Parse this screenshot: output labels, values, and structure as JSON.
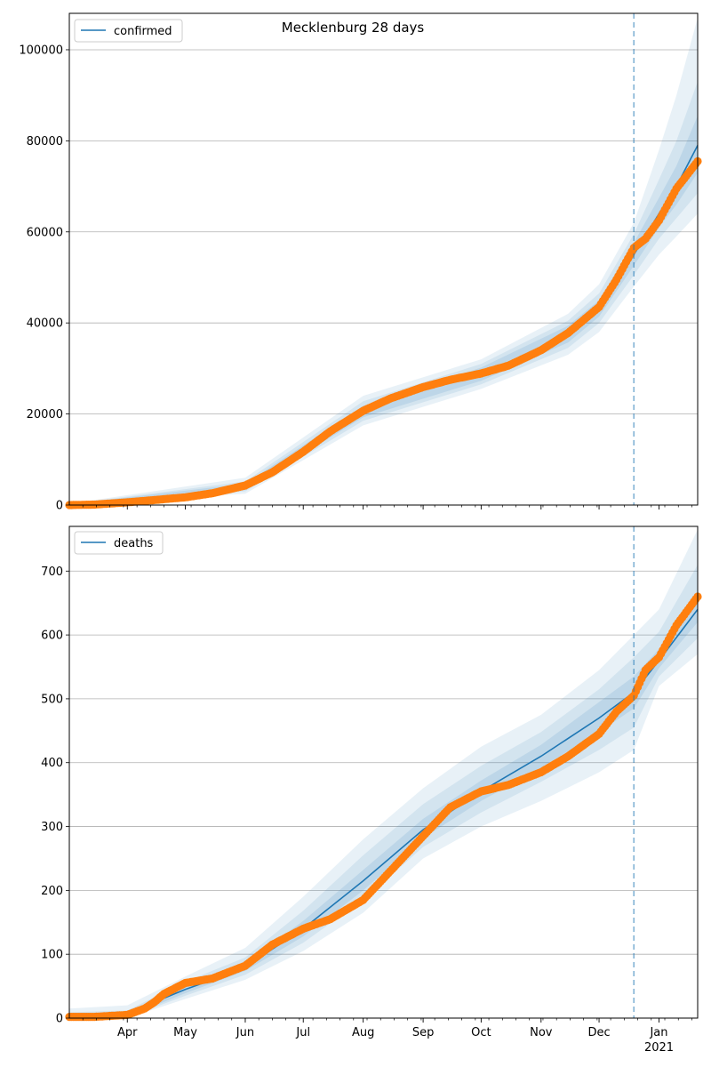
{
  "chart_data": [
    {
      "type": "line",
      "title": "Mecklenburg 28 days",
      "legend": {
        "label": "confirmed",
        "placement": "top-left"
      },
      "ylim": [
        0,
        108000
      ],
      "yticks": [
        0,
        20000,
        40000,
        60000,
        80000,
        100000
      ],
      "ytick_labels": [
        "0",
        "20000",
        "40000",
        "60000",
        "80000",
        "100000"
      ],
      "forecast_start": "2020-12-19",
      "x_range": [
        "2020-03-02",
        "2021-01-21"
      ],
      "grid": "horizontal",
      "colors": {
        "model": "#1f77b4",
        "observed": "#ff7f0e",
        "band": "#1f77b4"
      },
      "model_line": {
        "x": [
          "2020-03-02",
          "2020-04-01",
          "2020-05-01",
          "2020-06-01",
          "2020-06-15",
          "2020-07-01",
          "2020-07-15",
          "2020-08-01",
          "2020-08-15",
          "2020-09-01",
          "2020-09-15",
          "2020-10-01",
          "2020-10-15",
          "2020-11-01",
          "2020-11-15",
          "2020-12-01",
          "2020-12-10",
          "2020-12-19",
          "2021-01-01",
          "2021-01-10",
          "2021-01-21"
        ],
        "y": [
          100,
          500,
          1600,
          4000,
          7000,
          11500,
          16000,
          20500,
          23300,
          25800,
          27300,
          28800,
          30500,
          34000,
          37500,
          43000,
          48500,
          55000,
          64000,
          70000,
          79000
        ]
      },
      "bands": [
        {
          "x": [
            "2020-03-02",
            "2020-06-01",
            "2020-08-01",
            "2020-10-01",
            "2020-11-15",
            "2020-12-01",
            "2020-12-19",
            "2021-01-01",
            "2021-01-10",
            "2021-01-21"
          ],
          "lower": [
            0,
            2500,
            17500,
            25500,
            33000,
            38000,
            48000,
            55000,
            59000,
            64000
          ],
          "upper": [
            300,
            6000,
            24000,
            32000,
            42000,
            48500,
            62000,
            78000,
            90000,
            107000
          ]
        },
        {
          "x": [
            "2020-03-02",
            "2020-06-01",
            "2020-08-01",
            "2020-10-01",
            "2020-11-15",
            "2020-12-01",
            "2020-12-19",
            "2021-01-01",
            "2021-01-10",
            "2021-01-21"
          ],
          "lower": [
            0,
            3000,
            18500,
            26500,
            34500,
            40000,
            50500,
            58500,
            63000,
            68500
          ],
          "upper": [
            200,
            5200,
            22800,
            31000,
            40500,
            46500,
            59500,
            71500,
            80000,
            93000
          ]
        },
        {
          "x": [
            "2020-03-02",
            "2020-06-01",
            "2020-08-01",
            "2020-10-01",
            "2020-11-15",
            "2020-12-01",
            "2020-12-19",
            "2021-01-01",
            "2021-01-10",
            "2021-01-21"
          ],
          "lower": [
            0,
            3400,
            19300,
            27300,
            35700,
            41400,
            52600,
            61000,
            66000,
            73000
          ],
          "upper": [
            150,
            4700,
            21800,
            30200,
            39400,
            45000,
            57600,
            67500,
            74500,
            85500
          ]
        }
      ],
      "observed": {
        "x": [
          "2020-03-02",
          "2020-03-15",
          "2020-04-01",
          "2020-04-15",
          "2020-05-01",
          "2020-05-15",
          "2020-06-01",
          "2020-06-15",
          "2020-07-01",
          "2020-07-15",
          "2020-08-01",
          "2020-08-15",
          "2020-09-01",
          "2020-09-15",
          "2020-10-01",
          "2020-10-15",
          "2020-11-01",
          "2020-11-15",
          "2020-12-01",
          "2020-12-10",
          "2020-12-19",
          "2020-12-25",
          "2021-01-01",
          "2021-01-10",
          "2021-01-21"
        ],
        "y": [
          0,
          100,
          600,
          1100,
          1700,
          2600,
          4300,
          7200,
          11700,
          16200,
          20700,
          23400,
          25900,
          27500,
          28900,
          30600,
          34000,
          37800,
          43500,
          49500,
          56500,
          58500,
          62500,
          69500,
          75500
        ]
      }
    },
    {
      "type": "line",
      "title": "",
      "legend": {
        "label": "deaths",
        "placement": "top-left"
      },
      "ylim": [
        0,
        770
      ],
      "yticks": [
        0,
        100,
        200,
        300,
        400,
        500,
        600,
        700
      ],
      "ytick_labels": [
        "0",
        "100",
        "200",
        "300",
        "400",
        "500",
        "600",
        "700"
      ],
      "forecast_start": "2020-12-19",
      "x_range": [
        "2020-03-02",
        "2021-01-21"
      ],
      "xtick_labels": [
        {
          "date": "2020-04-01",
          "label": "Apr"
        },
        {
          "date": "2020-05-01",
          "label": "May"
        },
        {
          "date": "2020-06-01",
          "label": "Jun"
        },
        {
          "date": "2020-07-01",
          "label": "Jul"
        },
        {
          "date": "2020-08-01",
          "label": "Aug"
        },
        {
          "date": "2020-09-01",
          "label": "Sep"
        },
        {
          "date": "2020-10-01",
          "label": "Oct"
        },
        {
          "date": "2020-11-01",
          "label": "Nov"
        },
        {
          "date": "2020-12-01",
          "label": "Dec"
        },
        {
          "date": "2021-01-01",
          "label": "Jan",
          "sublabel": "2021"
        }
      ],
      "grid": "horizontal",
      "colors": {
        "model": "#1f77b4",
        "observed": "#ff7f0e",
        "band": "#1f77b4"
      },
      "model_line": {
        "x": [
          "2020-03-02",
          "2020-04-01",
          "2020-04-15",
          "2020-05-01",
          "2020-05-15",
          "2020-06-01",
          "2020-07-01",
          "2020-08-01",
          "2020-09-01",
          "2020-10-01",
          "2020-11-01",
          "2020-12-01",
          "2020-12-19",
          "2021-01-01",
          "2021-01-21"
        ],
        "y": [
          2,
          5,
          25,
          45,
          60,
          80,
          140,
          215,
          295,
          355,
          410,
          470,
          510,
          560,
          640
        ]
      },
      "bands": [
        {
          "x": [
            "2020-03-02",
            "2020-04-01",
            "2020-05-01",
            "2020-06-01",
            "2020-07-01",
            "2020-08-01",
            "2020-09-01",
            "2020-10-01",
            "2020-11-01",
            "2020-12-01",
            "2020-12-19",
            "2021-01-01",
            "2021-01-21"
          ],
          "lower": [
            0,
            0,
            30,
            60,
            105,
            165,
            250,
            300,
            340,
            385,
            420,
            520,
            570
          ],
          "upper": [
            15,
            20,
            65,
            110,
            190,
            280,
            360,
            425,
            475,
            545,
            600,
            640,
            765
          ]
        },
        {
          "x": [
            "2020-03-02",
            "2020-04-01",
            "2020-05-01",
            "2020-06-01",
            "2020-07-01",
            "2020-08-01",
            "2020-09-01",
            "2020-10-01",
            "2020-11-01",
            "2020-12-01",
            "2020-12-19",
            "2021-01-01",
            "2021-01-21"
          ],
          "lower": [
            0,
            1,
            35,
            68,
            118,
            185,
            268,
            322,
            370,
            420,
            455,
            535,
            595
          ],
          "upper": [
            9,
            12,
            57,
            95,
            168,
            255,
            335,
            395,
            448,
            515,
            565,
            605,
            710
          ]
        },
        {
          "x": [
            "2020-03-02",
            "2020-04-01",
            "2020-05-01",
            "2020-06-01",
            "2020-07-01",
            "2020-08-01",
            "2020-09-01",
            "2020-10-01",
            "2020-11-01",
            "2020-12-01",
            "2020-12-19",
            "2021-01-01",
            "2021-01-21"
          ],
          "lower": [
            0,
            2,
            39,
            74,
            128,
            200,
            282,
            340,
            392,
            448,
            485,
            548,
            620
          ],
          "upper": [
            5,
            8,
            51,
            87,
            152,
            232,
            312,
            372,
            428,
            495,
            535,
            578,
            665
          ]
        }
      ],
      "observed": {
        "x": [
          "2020-03-02",
          "2020-03-15",
          "2020-04-01",
          "2020-04-10",
          "2020-04-15",
          "2020-04-20",
          "2020-05-01",
          "2020-05-15",
          "2020-06-01",
          "2020-06-15",
          "2020-07-01",
          "2020-07-15",
          "2020-08-01",
          "2020-08-15",
          "2020-09-01",
          "2020-09-15",
          "2020-10-01",
          "2020-10-15",
          "2020-11-01",
          "2020-11-15",
          "2020-12-01",
          "2020-12-10",
          "2020-12-19",
          "2020-12-25",
          "2021-01-01",
          "2021-01-10",
          "2021-01-21"
        ],
        "y": [
          2,
          2,
          5,
          15,
          25,
          38,
          55,
          62,
          82,
          115,
          140,
          155,
          185,
          230,
          285,
          330,
          355,
          365,
          385,
          410,
          445,
          480,
          505,
          545,
          565,
          615,
          660
        ]
      }
    }
  ]
}
